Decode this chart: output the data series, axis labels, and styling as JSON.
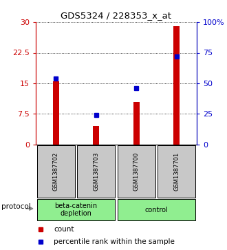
{
  "title": "GDS5324 / 228353_x_at",
  "samples": [
    "GSM1387702",
    "GSM1387703",
    "GSM1387700",
    "GSM1387701"
  ],
  "bar_values": [
    15.5,
    4.5,
    10.5,
    29.0
  ],
  "percentile_values": [
    54.0,
    24.0,
    46.0,
    72.0
  ],
  "bar_color": "#cc0000",
  "marker_color": "#0000cc",
  "ylim_left": [
    0,
    30
  ],
  "ylim_right": [
    0,
    100
  ],
  "yticks_left": [
    0,
    7.5,
    15,
    22.5,
    30
  ],
  "yticks_right": [
    0,
    25,
    50,
    75,
    100
  ],
  "ytick_labels_left": [
    "0",
    "7.5",
    "15",
    "22.5",
    "30"
  ],
  "ytick_labels_right": [
    "0",
    "25",
    "50",
    "75",
    "100%"
  ],
  "groups": [
    {
      "label": "beta-catenin\ndepletion",
      "samples": [
        0,
        1
      ]
    },
    {
      "label": "control",
      "samples": [
        2,
        3
      ]
    }
  ],
  "group_color": "#90ee90",
  "sample_box_color": "#c8c8c8",
  "protocol_label": "protocol",
  "legend_count_label": "count",
  "legend_pct_label": "percentile rank within the sample",
  "left_tick_color": "#cc0000",
  "right_tick_color": "#0000cc",
  "bar_width": 0.15,
  "bg_color": "#ffffff"
}
